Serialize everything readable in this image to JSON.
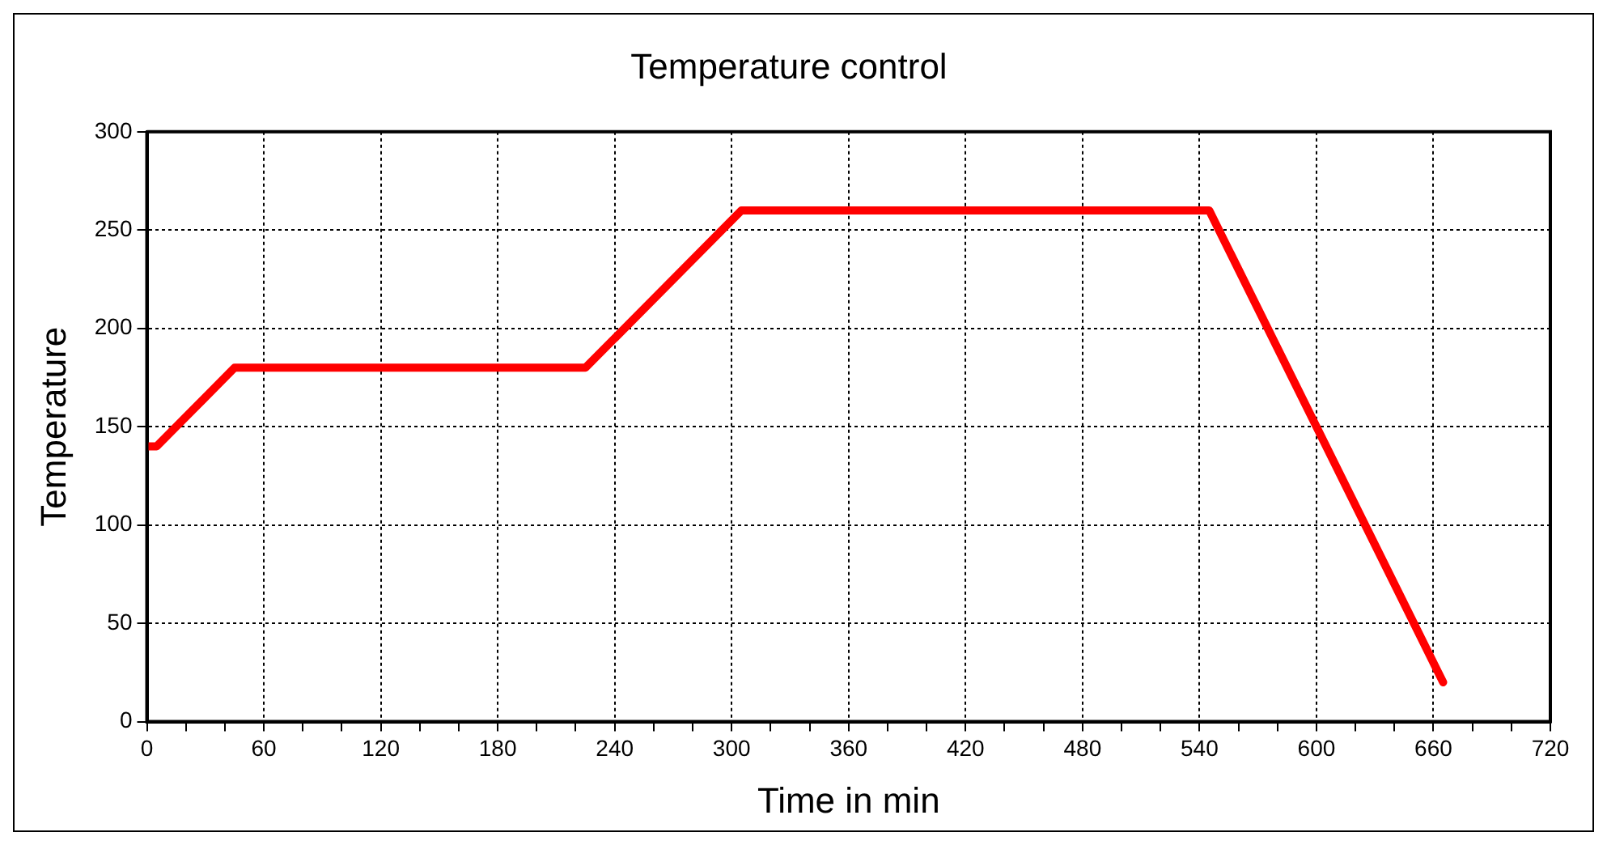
{
  "chart_data": {
    "type": "line",
    "title": "Temperature control",
    "xlabel": "Time in min",
    "ylabel": "Temperature",
    "x": [
      0,
      5,
      45,
      225,
      305,
      545,
      665
    ],
    "series": [
      {
        "color": "#ff0000",
        "values": [
          140,
          140,
          180,
          180,
          260,
          260,
          20
        ]
      }
    ],
    "xlim": [
      0,
      720
    ],
    "xticks": [
      0,
      {
        "value": 20,
        "label": null
      },
      {
        "value": 40,
        "label": null
      },
      60,
      {
        "value": 80,
        "label": null
      },
      {
        "value": 100,
        "label": null
      },
      120,
      {
        "value": 140,
        "label": null
      },
      {
        "value": 160,
        "label": null
      },
      180,
      {
        "value": 200,
        "label": null
      },
      {
        "value": 220,
        "label": null
      },
      240,
      {
        "value": 260,
        "label": null
      },
      {
        "value": 280,
        "label": null
      },
      300,
      {
        "value": 320,
        "label": null
      },
      {
        "value": 340,
        "label": null
      },
      360,
      {
        "value": 380,
        "label": null
      },
      {
        "value": 400,
        "label": null
      },
      420,
      {
        "value": 440,
        "label": null
      },
      {
        "value": 460,
        "label": null
      },
      480,
      {
        "value": 500,
        "label": null
      },
      {
        "value": 520,
        "label": null
      },
      540,
      {
        "value": 560,
        "label": null
      },
      {
        "value": 580,
        "label": null
      },
      600,
      {
        "value": 620,
        "label": null
      },
      {
        "value": 640,
        "label": null
      },
      660,
      {
        "value": 680,
        "label": null
      },
      {
        "value": 700,
        "label": null
      },
      720
    ],
    "ylim": [
      0,
      300
    ],
    "yticks": [
      0,
      50,
      100,
      150,
      200,
      250,
      300
    ],
    "grid": true,
    "legend": false,
    "marker": "none",
    "line_style": "solid"
  }
}
